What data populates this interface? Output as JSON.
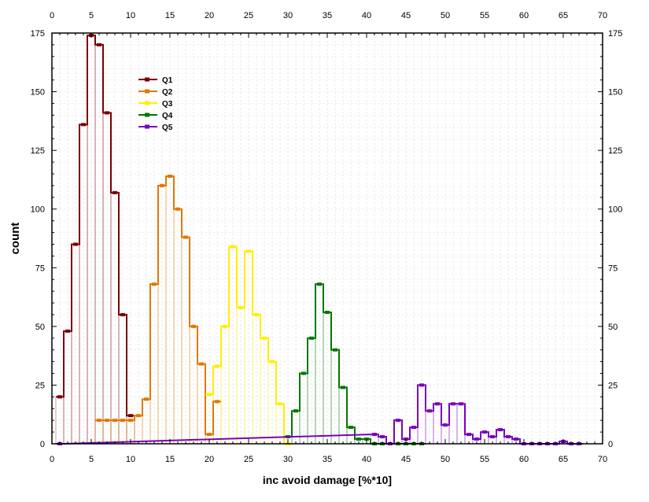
{
  "chart_data": {
    "type": "line",
    "title": "",
    "xlabel": "inc avoid damage [%*10]",
    "ylabel": "count",
    "xlim": [
      0,
      70
    ],
    "ylim": [
      0,
      175
    ],
    "xticks": [
      0,
      5,
      10,
      15,
      20,
      25,
      30,
      35,
      40,
      45,
      50,
      55,
      60,
      65,
      70
    ],
    "yticks": [
      0,
      25,
      50,
      75,
      100,
      125,
      150,
      175
    ],
    "grid": true,
    "legend_position": "top-left",
    "series": [
      {
        "name": "Q1",
        "color": "#7a0000",
        "x": [
          1,
          2,
          3,
          4,
          5,
          6,
          7,
          8,
          9,
          10
        ],
        "y": [
          20,
          48,
          85,
          136,
          174,
          170,
          141,
          107,
          55,
          12
        ]
      },
      {
        "name": "Q2",
        "color": "#e07800",
        "x": [
          6,
          7,
          8,
          9,
          10,
          11,
          12,
          13,
          14,
          15,
          16,
          17,
          18,
          19,
          20,
          21
        ],
        "y": [
          10,
          10,
          10,
          10,
          10,
          12,
          19,
          68,
          110,
          114,
          100,
          88,
          50,
          34,
          4,
          18
        ]
      },
      {
        "name": "Q3",
        "color": "#ffee00",
        "x": [
          20,
          21,
          22,
          23,
          24,
          25,
          26,
          27,
          28,
          29,
          30
        ],
        "y": [
          21,
          33,
          50,
          84,
          58,
          82,
          55,
          45,
          35,
          17,
          0
        ]
      },
      {
        "name": "Q4",
        "color": "#007700",
        "x": [
          30,
          31,
          32,
          33,
          34,
          35,
          36,
          37,
          38,
          39,
          40,
          41,
          42,
          43,
          44,
          45,
          46,
          47
        ],
        "y": [
          3,
          14,
          30,
          45,
          68,
          56,
          40,
          24,
          7,
          2,
          2,
          0,
          0,
          0,
          0,
          0,
          0,
          0
        ]
      },
      {
        "name": "Q5",
        "color": "#7a00c0",
        "x": [
          1,
          41,
          42,
          43,
          44,
          45,
          46,
          47,
          48,
          49,
          50,
          51,
          52,
          53,
          54,
          55,
          56,
          57,
          58,
          59,
          60,
          61,
          62,
          63,
          64,
          65,
          66,
          67
        ],
        "y": [
          0,
          4,
          3,
          0,
          10,
          2,
          7,
          25,
          14,
          17,
          8,
          17,
          17,
          4,
          2,
          5,
          3,
          6,
          3,
          2,
          0,
          0,
          0,
          0,
          0,
          1,
          0,
          0
        ]
      }
    ]
  }
}
